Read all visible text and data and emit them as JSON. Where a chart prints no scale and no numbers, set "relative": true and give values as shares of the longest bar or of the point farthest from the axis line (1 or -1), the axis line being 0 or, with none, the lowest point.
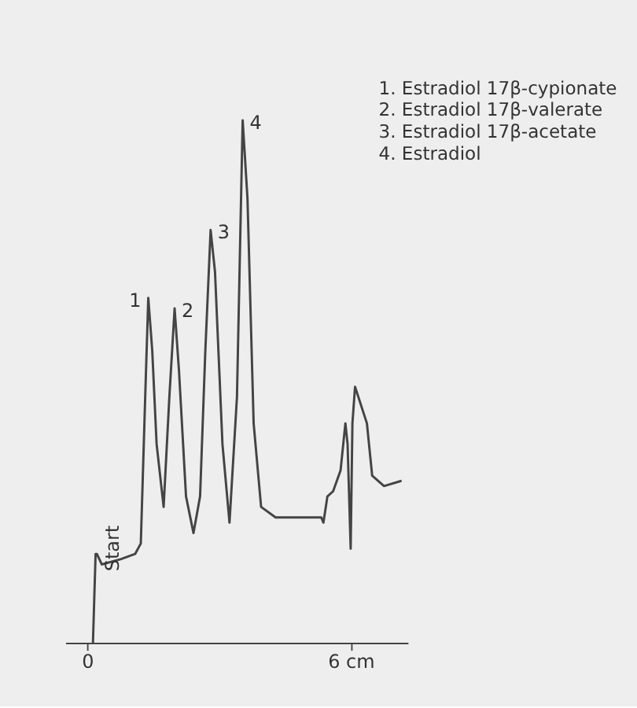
{
  "chart_data": {
    "type": "line",
    "relative": true,
    "x": [
      0.13,
      0.19,
      0.22,
      0.33,
      0.76,
      1.09,
      1.22,
      1.32,
      1.39,
      1.48,
      1.58,
      1.74,
      1.87,
      1.99,
      2.09,
      2.25,
      2.42,
      2.57,
      2.69,
      2.81,
      2.91,
      3.08,
      3.24,
      3.41,
      3.54,
      3.65,
      3.79,
      3.96,
      4.29,
      4.62,
      4.84,
      5.17,
      5.33,
      5.38,
      5.47,
      5.6,
      5.77,
      5.88,
      5.93,
      6.0,
      6.04,
      6.1,
      6.37,
      6.49,
      6.76,
      7.16
    ],
    "series": [
      {
        "color": "#444444",
        "values": [
          0.0,
          0.17,
          0.17,
          0.15,
          0.16,
          0.17,
          0.19,
          0.47,
          0.66,
          0.56,
          0.38,
          0.26,
          0.47,
          0.64,
          0.52,
          0.28,
          0.21,
          0.28,
          0.56,
          0.79,
          0.71,
          0.38,
          0.23,
          0.47,
          1.0,
          0.85,
          0.42,
          0.26,
          0.24,
          0.24,
          0.24,
          0.24,
          0.24,
          0.23,
          0.28,
          0.29,
          0.33,
          0.42,
          0.38,
          0.18,
          0.42,
          0.49,
          0.42,
          0.32,
          0.3,
          0.31
        ]
      }
    ],
    "xlim": [
      -0.5,
      7.3
    ],
    "xticks": [
      0,
      {
        "value": 6,
        "label": "6 cm"
      }
    ],
    "grid": false,
    "marker": "none",
    "line_style": "solid",
    "annotations": [
      {
        "text": "Start",
        "x": 0.19,
        "y": 0.17
      },
      {
        "text": "1",
        "x": 1.39,
        "y": 0.66
      },
      {
        "text": "2",
        "x": 1.99,
        "y": 0.64
      },
      {
        "text": "3",
        "x": 2.81,
        "y": 0.79
      },
      {
        "text": "4",
        "x": 3.54,
        "y": 1.0
      },
      "1.   Estradiol 17β-cypionate",
      "2.   Estradiol 17β-valerate",
      "3.   Estradiol 17β-acetate",
      "4.   Estradiol"
    ]
  }
}
